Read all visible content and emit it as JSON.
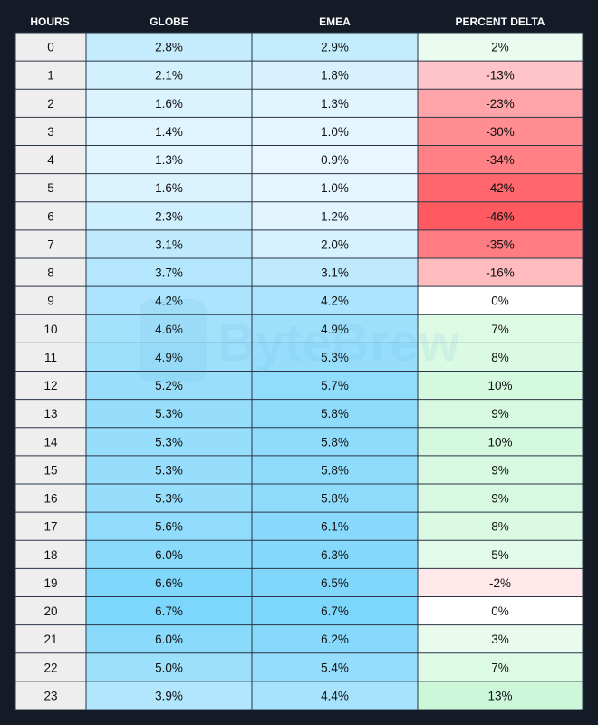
{
  "chart_data": {
    "type": "table",
    "columns": [
      "HOURS",
      "GLOBE",
      "EMEA",
      "PERCENT DELTA"
    ],
    "rows": [
      {
        "hours": "0",
        "globe": 2.8,
        "emea": 2.9,
        "delta": 2
      },
      {
        "hours": "1",
        "globe": 2.1,
        "emea": 1.8,
        "delta": -13
      },
      {
        "hours": "2",
        "globe": 1.6,
        "emea": 1.3,
        "delta": -23
      },
      {
        "hours": "3",
        "globe": 1.4,
        "emea": 1.0,
        "delta": -30
      },
      {
        "hours": "4",
        "globe": 1.3,
        "emea": 0.9,
        "delta": -34
      },
      {
        "hours": "5",
        "globe": 1.6,
        "emea": 1.0,
        "delta": -42
      },
      {
        "hours": "6",
        "globe": 2.3,
        "emea": 1.2,
        "delta": -46
      },
      {
        "hours": "7",
        "globe": 3.1,
        "emea": 2.0,
        "delta": -35
      },
      {
        "hours": "8",
        "globe": 3.7,
        "emea": 3.1,
        "delta": -16
      },
      {
        "hours": "9",
        "globe": 4.2,
        "emea": 4.2,
        "delta": 0
      },
      {
        "hours": "10",
        "globe": 4.6,
        "emea": 4.9,
        "delta": 7
      },
      {
        "hours": "11",
        "globe": 4.9,
        "emea": 5.3,
        "delta": 8
      },
      {
        "hours": "12",
        "globe": 5.2,
        "emea": 5.7,
        "delta": 10
      },
      {
        "hours": "13",
        "globe": 5.3,
        "emea": 5.8,
        "delta": 9
      },
      {
        "hours": "14",
        "globe": 5.3,
        "emea": 5.8,
        "delta": 10
      },
      {
        "hours": "15",
        "globe": 5.3,
        "emea": 5.8,
        "delta": 9
      },
      {
        "hours": "16",
        "globe": 5.3,
        "emea": 5.8,
        "delta": 9
      },
      {
        "hours": "17",
        "globe": 5.6,
        "emea": 6.1,
        "delta": 8
      },
      {
        "hours": "18",
        "globe": 6.0,
        "emea": 6.3,
        "delta": 5
      },
      {
        "hours": "19",
        "globe": 6.6,
        "emea": 6.5,
        "delta": -2
      },
      {
        "hours": "20",
        "globe": 6.7,
        "emea": 6.7,
        "delta": 0
      },
      {
        "hours": "21",
        "globe": 6.0,
        "emea": 6.2,
        "delta": 3
      },
      {
        "hours": "22",
        "globe": 5.0,
        "emea": 5.4,
        "delta": 7
      },
      {
        "hours": "23",
        "globe": 3.9,
        "emea": 4.4,
        "delta": 13
      }
    ]
  },
  "watermark": {
    "text": "ByteBrew"
  },
  "colors": {
    "background": "#141b26",
    "hours_cell": "#eeeeee",
    "blue_light": "#e8f7fe",
    "blue_dark": "#7dd6fb",
    "red_light": "#ffeef0",
    "red_dark": "#ff5a5f",
    "green_light": "#f0fcf3",
    "green_dark": "#ccf8d9",
    "neutral": "#ffffff"
  }
}
